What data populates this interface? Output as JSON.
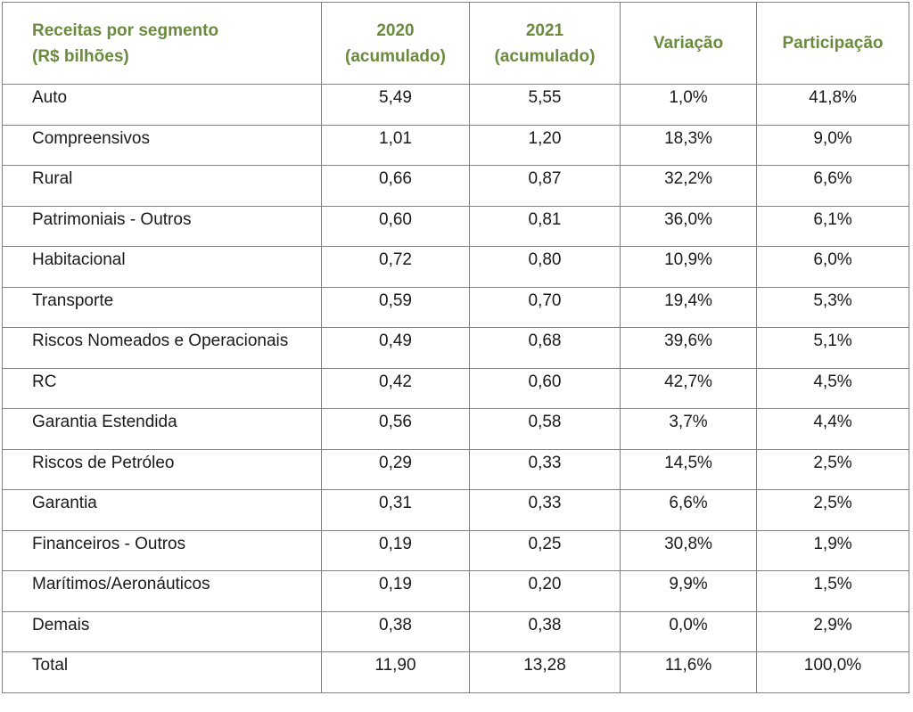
{
  "header": {
    "segment_line1": "Receitas por segmento",
    "segment_line2": "(R$ bilhões)",
    "y2020_line1": "2020",
    "y2020_line2": "(acumulado)",
    "y2021_line1": "2021",
    "y2021_line2": "(acumulado)",
    "variation": "Variação",
    "share": "Participação"
  },
  "rows": [
    {
      "segment": "Auto",
      "v2020": "5,49",
      "v2021": "5,55",
      "variation": "1,0%",
      "share": "41,8%"
    },
    {
      "segment": "Compreensivos",
      "v2020": "1,01",
      "v2021": "1,20",
      "variation": "18,3%",
      "share": "9,0%"
    },
    {
      "segment": "Rural",
      "v2020": "0,66",
      "v2021": "0,87",
      "variation": "32,2%",
      "share": "6,6%"
    },
    {
      "segment": "Patrimoniais - Outros",
      "v2020": "0,60",
      "v2021": "0,81",
      "variation": "36,0%",
      "share": "6,1%"
    },
    {
      "segment": "Habitacional",
      "v2020": "0,72",
      "v2021": "0,80",
      "variation": "10,9%",
      "share": "6,0%"
    },
    {
      "segment": "Transporte",
      "v2020": "0,59",
      "v2021": "0,70",
      "variation": "19,4%",
      "share": "5,3%"
    },
    {
      "segment": "Riscos Nomeados e Operacionais",
      "v2020": "0,49",
      "v2021": "0,68",
      "variation": "39,6%",
      "share": "5,1%"
    },
    {
      "segment": "RC",
      "v2020": "0,42",
      "v2021": "0,60",
      "variation": "42,7%",
      "share": "4,5%"
    },
    {
      "segment": "Garantia Estendida",
      "v2020": "0,56",
      "v2021": "0,58",
      "variation": "3,7%",
      "share": "4,4%"
    },
    {
      "segment": "Riscos de Petróleo",
      "v2020": "0,29",
      "v2021": "0,33",
      "variation": "14,5%",
      "share": "2,5%"
    },
    {
      "segment": "Garantia",
      "v2020": "0,31",
      "v2021": "0,33",
      "variation": "6,6%",
      "share": "2,5%"
    },
    {
      "segment": "Financeiros - Outros",
      "v2020": "0,19",
      "v2021": "0,25",
      "variation": "30,8%",
      "share": "1,9%"
    },
    {
      "segment": "Marítimos/Aeronáuticos",
      "v2020": "0,19",
      "v2021": "0,20",
      "variation": "9,9%",
      "share": "1,5%"
    },
    {
      "segment": "Demais",
      "v2020": "0,38",
      "v2021": "0,38",
      "variation": "0,0%",
      "share": "2,9%"
    },
    {
      "segment": "Total",
      "v2020": "11,90",
      "v2021": "13,28",
      "variation": "11,6%",
      "share": "100,0%"
    }
  ],
  "colors": {
    "header_text": "#6a8b3e",
    "border": "#808080"
  }
}
